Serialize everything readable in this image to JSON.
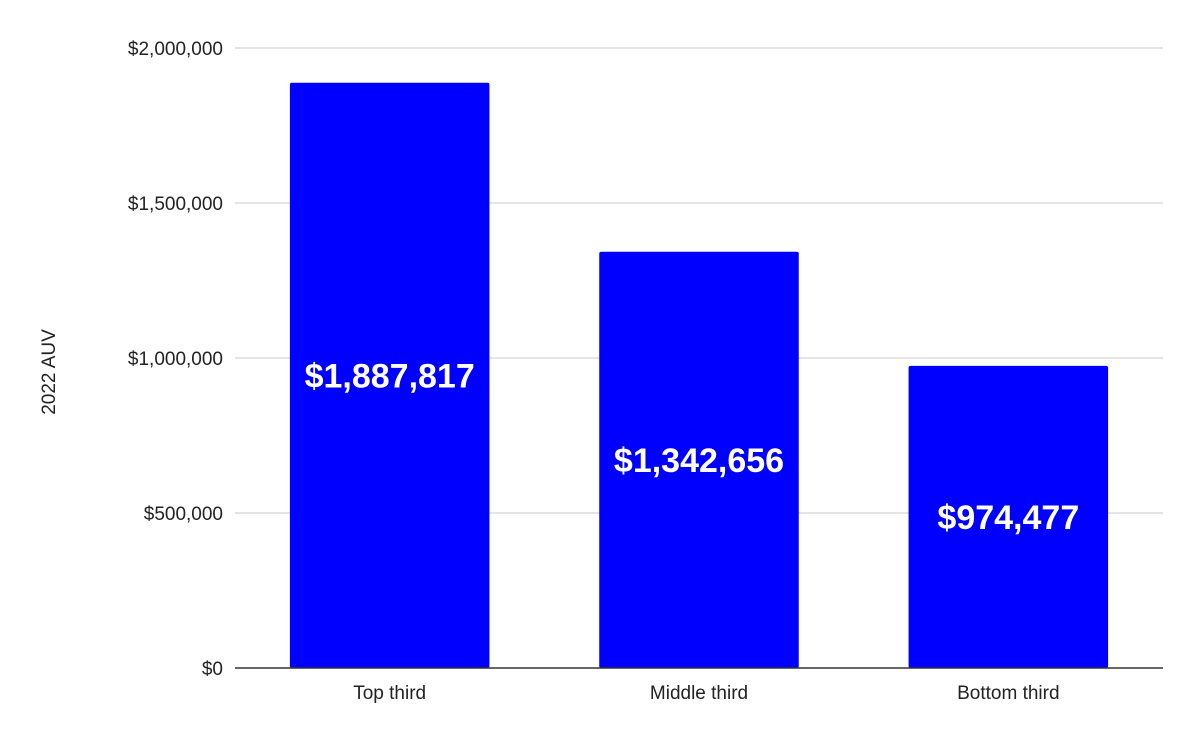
{
  "chart_data": {
    "type": "bar",
    "title": "",
    "xlabel": "",
    "ylabel": "2022 AUV",
    "categories": [
      "Top third",
      "Middle third",
      "Bottom third"
    ],
    "values": [
      1887817,
      1342656,
      974477
    ],
    "data_labels": [
      "$1,887,817",
      "$1,342,656",
      "$974,477"
    ],
    "ylim": [
      0,
      2000000
    ],
    "yticks": [
      0,
      500000,
      1000000,
      1500000,
      2000000
    ],
    "ytick_labels": [
      "$0",
      "$500,000",
      "$1,000,000",
      "$1,500,000",
      "$2,000,000"
    ],
    "grid": true,
    "legend": "none",
    "bar_color": "#0000ff"
  }
}
